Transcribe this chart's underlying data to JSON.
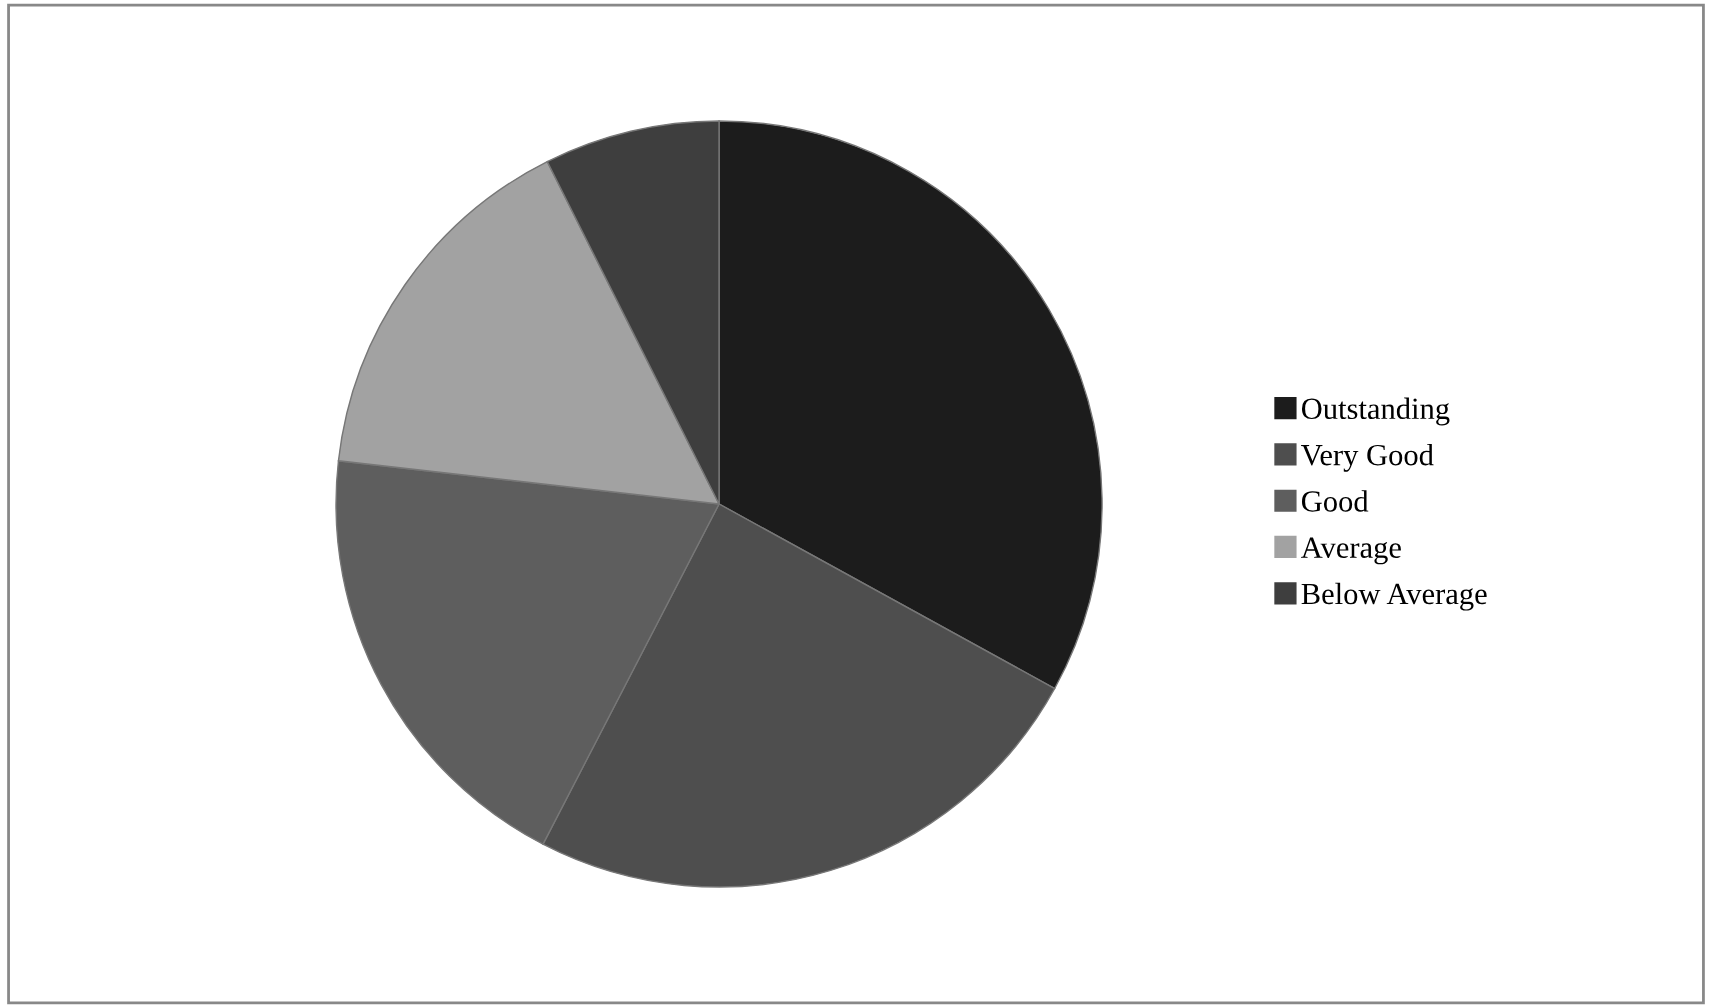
{
  "chart_data": {
    "type": "pie",
    "categories": [
      "Outstanding",
      "Very Good",
      "Good",
      "Average",
      "Below Average"
    ],
    "values": [
      33,
      24.6,
      19.2,
      15.8,
      7.4
    ],
    "colors": [
      "#1c1c1c",
      "#4e4e4e",
      "#5e5e5e",
      "#a2a2a2",
      "#3e3e3e"
    ],
    "legend": "right"
  }
}
